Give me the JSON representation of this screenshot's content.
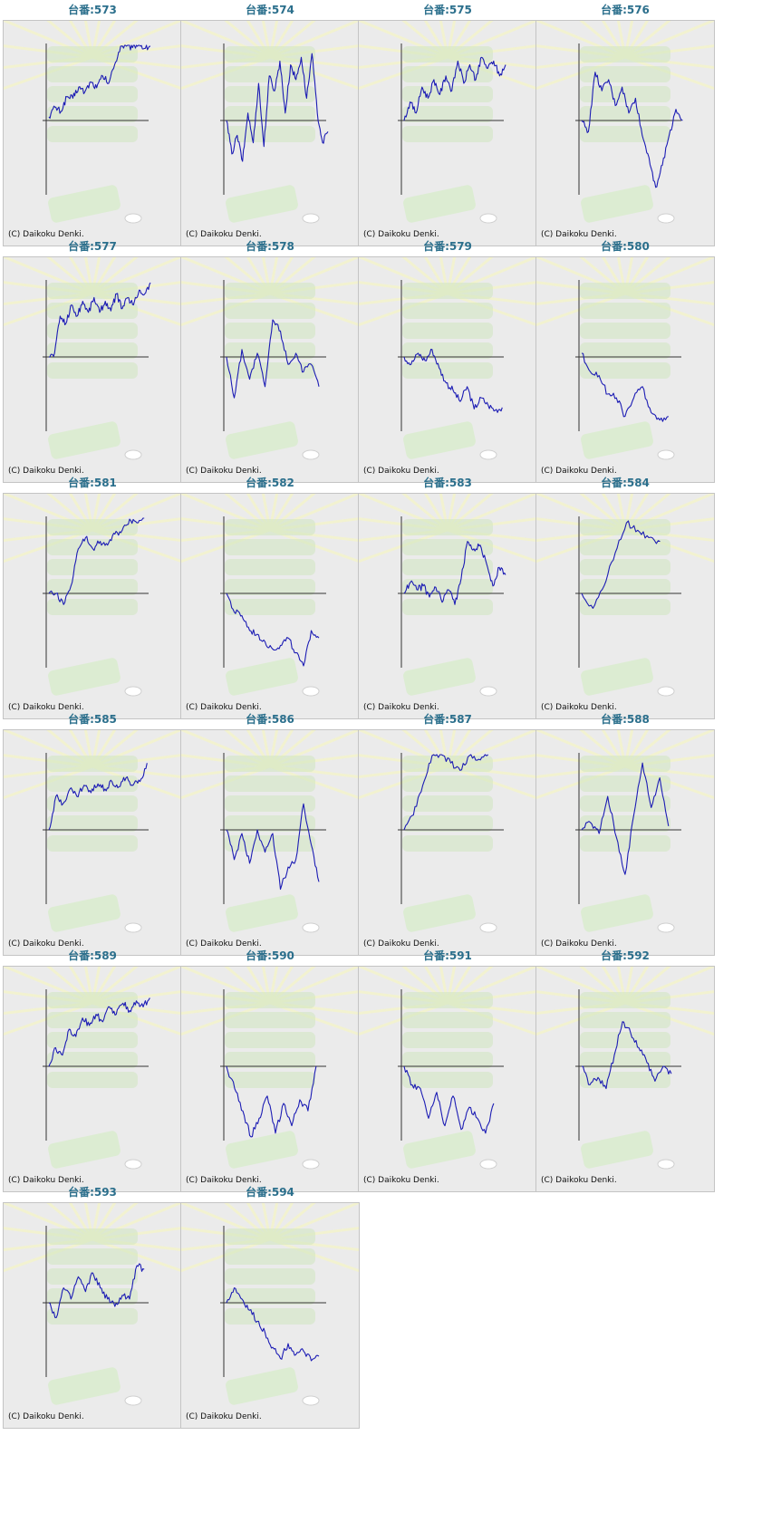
{
  "page": {
    "cell_title_prefix": "台番:"
  },
  "copyright": "(C) Daikoku Denki.",
  "colors": {
    "line": "#1c1cb4",
    "axis": "#333333",
    "title": "#2b6f8c",
    "panel": "#ebebeb",
    "art_green": "#cfe6c0",
    "art_rays": "#f2f2d0"
  },
  "chart_data": [
    {
      "type": "line",
      "title": "台番:573",
      "series": [
        {
          "values": [
            0.05,
            0.18,
            0.12,
            0.32,
            0.3,
            0.45,
            0.38,
            0.52,
            0.44,
            0.6,
            0.5,
            0.75,
            1.0,
            1.0,
            0.98,
            1.05,
            0.97,
            1.0
          ]
        }
      ]
    },
    {
      "type": "line",
      "title": "台番:574",
      "series": [
        {
          "values": [
            0.0,
            -0.45,
            -0.2,
            -0.55,
            0.1,
            -0.3,
            0.5,
            -0.35,
            0.6,
            0.4,
            0.8,
            0.1,
            0.75,
            0.55,
            0.85,
            0.3,
            0.9,
            0.1,
            -0.3,
            -0.15
          ]
        }
      ]
    },
    {
      "type": "line",
      "title": "台番:575",
      "series": [
        {
          "values": [
            0.0,
            0.25,
            0.1,
            0.45,
            0.3,
            0.55,
            0.35,
            0.6,
            0.4,
            0.8,
            0.5,
            0.75,
            0.55,
            0.85,
            0.7,
            0.8,
            0.6,
            0.75
          ]
        }
      ]
    },
    {
      "type": "line",
      "title": "台番:576",
      "series": [
        {
          "values": [
            0.0,
            -0.15,
            0.65,
            0.4,
            0.55,
            0.2,
            0.45,
            0.1,
            0.3,
            -0.2,
            -0.5,
            -0.9,
            -0.6,
            -0.2,
            0.15,
            0.0
          ]
        }
      ]
    },
    {
      "type": "line",
      "title": "台番:577",
      "series": [
        {
          "values": [
            0.0,
            0.05,
            0.55,
            0.45,
            0.7,
            0.55,
            0.75,
            0.6,
            0.8,
            0.6,
            0.75,
            0.62,
            0.85,
            0.65,
            0.8,
            0.7,
            0.9,
            0.85,
            1.0
          ]
        }
      ]
    },
    {
      "type": "line",
      "title": "台番:578",
      "series": [
        {
          "values": [
            0.0,
            -0.55,
            0.1,
            -0.3,
            0.05,
            -0.4,
            0.5,
            0.35,
            -0.1,
            0.05,
            -0.2,
            -0.1,
            -0.4
          ]
        }
      ]
    },
    {
      "type": "line",
      "title": "台番:579",
      "series": [
        {
          "values": [
            0.0,
            -0.1,
            0.05,
            -0.05,
            0.1,
            -0.15,
            -0.35,
            -0.45,
            -0.6,
            -0.4,
            -0.7,
            -0.55,
            -0.65,
            -0.72,
            -0.68
          ]
        }
      ]
    },
    {
      "type": "line",
      "title": "台番:580",
      "series": [
        {
          "values": [
            0.05,
            -0.2,
            -0.25,
            -0.5,
            -0.55,
            -0.8,
            -0.55,
            -0.4,
            -0.75,
            -0.85,
            -0.8
          ]
        }
      ]
    },
    {
      "type": "line",
      "title": "台番:581",
      "series": [
        {
          "values": [
            0.0,
            0.0,
            -0.15,
            0.1,
            0.6,
            0.75,
            0.6,
            0.7,
            0.65,
            0.8,
            0.85,
            1.0,
            0.95,
            1.05
          ]
        }
      ]
    },
    {
      "type": "line",
      "title": "台番:582",
      "series": [
        {
          "values": [
            0.0,
            -0.25,
            -0.3,
            -0.5,
            -0.55,
            -0.65,
            -0.75,
            -0.7,
            -0.6,
            -0.8,
            -1.0,
            -0.5,
            -0.6
          ]
        }
      ]
    },
    {
      "type": "line",
      "title": "台番:583",
      "series": [
        {
          "values": [
            0.0,
            0.15,
            0.05,
            0.1,
            -0.05,
            0.08,
            -0.12,
            0.05,
            -0.15,
            0.2,
            0.7,
            0.6,
            0.65,
            0.4,
            0.1,
            0.35,
            0.25
          ]
        }
      ]
    },
    {
      "type": "line",
      "title": "台番:584",
      "series": [
        {
          "values": [
            0.0,
            -0.2,
            0.1,
            0.55,
            0.95,
            0.85,
            0.75,
            0.7
          ]
        }
      ]
    },
    {
      "type": "line",
      "title": "台番:585",
      "series": [
        {
          "values": [
            0.0,
            0.45,
            0.35,
            0.55,
            0.45,
            0.6,
            0.5,
            0.62,
            0.55,
            0.65,
            0.58,
            0.7,
            0.6,
            0.65,
            0.9
          ]
        }
      ]
    },
    {
      "type": "line",
      "title": "台番:586",
      "series": [
        {
          "values": [
            0.0,
            -0.4,
            -0.05,
            -0.45,
            0.0,
            -0.3,
            -0.05,
            -0.8,
            -0.5,
            -0.4,
            0.35,
            -0.2,
            -0.7
          ]
        }
      ]
    },
    {
      "type": "line",
      "title": "台番:587",
      "series": [
        {
          "values": [
            0.0,
            0.2,
            0.6,
            1.0,
            1.02,
            0.9,
            0.8,
            1.0,
            0.95,
            1.02
          ]
        }
      ]
    },
    {
      "type": "line",
      "title": "台番:588",
      "series": [
        {
          "values": [
            0.0,
            0.1,
            -0.05,
            0.45,
            -0.1,
            -0.6,
            0.2,
            0.9,
            0.3,
            0.7,
            0.05
          ]
        }
      ]
    },
    {
      "type": "line",
      "title": "台番:589",
      "series": [
        {
          "values": [
            0.0,
            0.25,
            0.15,
            0.5,
            0.4,
            0.65,
            0.55,
            0.7,
            0.6,
            0.8,
            0.7,
            0.85,
            0.75,
            0.88,
            0.8,
            0.92
          ]
        }
      ]
    },
    {
      "type": "line",
      "title": "台番:590",
      "series": [
        {
          "values": [
            0.0,
            -0.3,
            -0.6,
            -0.95,
            -0.7,
            -0.4,
            -0.9,
            -0.5,
            -0.8,
            -0.45,
            -0.6,
            0.0
          ]
        }
      ]
    },
    {
      "type": "line",
      "title": "台番:591",
      "series": [
        {
          "values": [
            0.0,
            -0.25,
            -0.3,
            -0.7,
            -0.35,
            -0.8,
            -0.4,
            -0.85,
            -0.55,
            -0.7,
            -0.9,
            -0.5
          ]
        }
      ]
    },
    {
      "type": "line",
      "title": "台番:592",
      "series": [
        {
          "values": [
            0.0,
            -0.25,
            -0.15,
            -0.3,
            0.15,
            0.6,
            0.45,
            0.25,
            0.05,
            -0.2,
            0.0,
            -0.1
          ]
        }
      ]
    },
    {
      "type": "line",
      "title": "台番:593",
      "series": [
        {
          "values": [
            0.0,
            -0.2,
            0.2,
            0.05,
            0.35,
            0.15,
            0.4,
            0.2,
            0.05,
            -0.05,
            0.1,
            0.05,
            0.5,
            0.45
          ]
        }
      ]
    },
    {
      "type": "line",
      "title": "台番:594",
      "series": [
        {
          "values": [
            0.0,
            0.2,
            0.05,
            -0.1,
            -0.25,
            -0.4,
            -0.6,
            -0.75,
            -0.55,
            -0.7,
            -0.65,
            -0.78,
            -0.72
          ]
        }
      ]
    }
  ]
}
